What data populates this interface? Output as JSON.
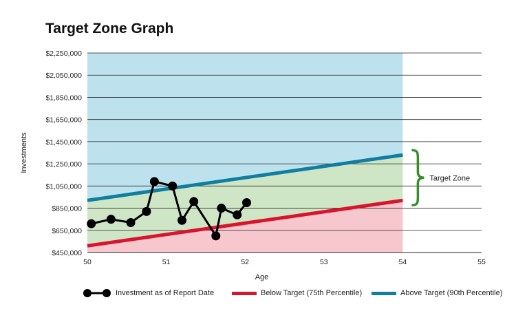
{
  "title": "Target Zone Graph",
  "colors": {
    "above_zone": "#bde2ee",
    "target_zone": "#cfe6c6",
    "below_zone": "#f6c7cd",
    "above_line": "#0f7ea0",
    "below_line": "#d9142f",
    "investment": "#000000",
    "brace": "#3a8c2b"
  },
  "chart_data": {
    "type": "line",
    "xlabel": "Age",
    "ylabel": "Investments",
    "xlim": [
      50,
      55
    ],
    "ylim": [
      450000,
      2250000
    ],
    "x_ticks": [
      50,
      51,
      52,
      53,
      54,
      55
    ],
    "x_tick_labels": [
      "50",
      "51",
      "52",
      "53",
      "54",
      "55"
    ],
    "y_ticks": [
      450000,
      650000,
      850000,
      1050000,
      1250000,
      1450000,
      1650000,
      1850000,
      2050000,
      2250000
    ],
    "y_tick_labels": [
      "$450,000",
      "$650,000",
      "$850,000",
      "$1,050,000",
      "$1,250,000",
      "$1,450,000",
      "$1,650,000",
      "$1,850,000",
      "$2,050,000",
      "$2,250,000"
    ],
    "grid": true,
    "shaded_until_x": 54,
    "annotation": "Target Zone",
    "legend_position": "bottom",
    "series": [
      {
        "name": "Investment as of Report Date",
        "kind": "markers-line",
        "x": [
          50.05,
          50.3,
          50.55,
          50.75,
          50.85,
          51.08,
          51.2,
          51.35,
          51.63,
          51.7,
          51.9,
          52.02
        ],
        "y": [
          710000,
          750000,
          720000,
          820000,
          1090000,
          1050000,
          740000,
          910000,
          600000,
          850000,
          790000,
          900000
        ]
      },
      {
        "name": "Below Target (75th Percentile)",
        "kind": "line",
        "x": [
          50,
          54
        ],
        "y": [
          510000,
          920000
        ]
      },
      {
        "name": "Above Target (90th Percentile)",
        "kind": "line",
        "x": [
          50,
          54
        ],
        "y": [
          920000,
          1330000
        ]
      }
    ]
  }
}
